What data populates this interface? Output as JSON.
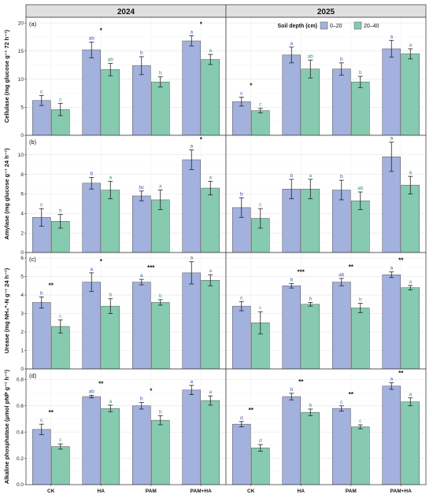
{
  "years": [
    "2024",
    "2025"
  ],
  "chart_data": {
    "type": "bar",
    "categories": [
      "CK",
      "HA",
      "PAM",
      "PAM+HA"
    ],
    "legend": {
      "title": "Soil depth (cm)",
      "placement": "top-right",
      "entries": [
        {
          "label": "0–20",
          "color": "#a2b1dd"
        },
        {
          "label": "20–40",
          "color": "#86cbb0"
        }
      ]
    },
    "series_colors": {
      "s0": "#a2b1dd",
      "s1": "#86cbb0"
    },
    "letter_colors": {
      "s0": "#3a5bb0",
      "s1": "#2e9a6e"
    },
    "grid": true,
    "panels": [
      {
        "tag": "(a)",
        "ylabel": "Cellulase (mg glucose g⁻¹ 72 h⁻¹)",
        "ylim": [
          0,
          21
        ],
        "yticks": [
          0,
          5,
          10,
          15,
          20
        ],
        "years": [
          {
            "s0": [
              6.2,
              15.2,
              12.4,
              16.8
            ],
            "s0_err": [
              0.9,
              1.4,
              1.6,
              0.9
            ],
            "s1": [
              4.6,
              11.7,
              9.5,
              13.5
            ],
            "s1_err": [
              1.1,
              1.1,
              0.9,
              0.9
            ],
            "s0_letters": [
              "c",
              "ab",
              "b",
              "a"
            ],
            "s1_letters": [
              "c",
              "ab",
              "b",
              "a"
            ],
            "sig": [
              "",
              "*",
              "",
              "*"
            ]
          },
          {
            "s0": [
              6.0,
              14.3,
              11.8,
              15.4
            ],
            "s0_err": [
              0.8,
              1.4,
              1.1,
              1.5
            ],
            "s1": [
              4.4,
              11.8,
              9.5,
              14.5
            ],
            "s1_err": [
              0.4,
              1.6,
              1.0,
              0.9
            ],
            "s0_letters": [
              "c",
              "a",
              "b",
              "a"
            ],
            "s1_letters": [
              "c",
              "ab",
              "b",
              "a"
            ],
            "sig": [
              "*",
              "",
              "",
              ""
            ]
          }
        ]
      },
      {
        "tag": "(b)",
        "ylabel": "Amylase (mg glucose g⁻¹ 24 h⁻¹)",
        "ylim": [
          0,
          12
        ],
        "yticks": [
          0,
          2,
          4,
          6,
          8,
          10
        ],
        "years": [
          {
            "s0": [
              3.6,
              7.1,
              5.8,
              9.5
            ],
            "s0_err": [
              0.9,
              0.6,
              0.5,
              1.0
            ],
            "s1": [
              3.2,
              6.4,
              5.4,
              6.6
            ],
            "s1_err": [
              0.7,
              0.9,
              1.0,
              0.7
            ],
            "s0_letters": [
              "c",
              "b",
              "bc",
              "a"
            ],
            "s1_letters": [
              "b",
              "a",
              "a",
              "a"
            ],
            "sig": [
              "",
              "",
              "",
              "*"
            ]
          },
          {
            "s0": [
              4.6,
              6.5,
              6.4,
              9.8
            ],
            "s0_err": [
              1.0,
              1.0,
              1.0,
              1.5
            ],
            "s1": [
              3.5,
              6.5,
              5.3,
              6.9
            ],
            "s1_err": [
              1.0,
              1.0,
              0.9,
              0.9
            ],
            "s0_letters": [
              "b",
              "b",
              "b",
              "a"
            ],
            "s1_letters": [
              "c",
              "a",
              "ab",
              "a"
            ],
            "sig": [
              "",
              "",
              "",
              ""
            ]
          }
        ]
      },
      {
        "tag": "(c)",
        "ylabel": "Urease (mg NH₄⁺-N g⁻¹ 24 h⁻¹)",
        "ylim": [
          0,
          6.3
        ],
        "yticks": [
          0,
          1,
          2,
          3,
          4,
          5,
          6
        ],
        "years": [
          {
            "s0": [
              3.6,
              4.7,
              4.7,
              5.2
            ],
            "s0_err": [
              0.3,
              0.5,
              0.15,
              0.6
            ],
            "s1": [
              2.3,
              3.4,
              3.6,
              4.8
            ],
            "s1_err": [
              0.35,
              0.4,
              0.15,
              0.3
            ],
            "s0_letters": [
              "b",
              "a",
              "a",
              "a"
            ],
            "s1_letters": [
              "c",
              "b",
              "b",
              "a"
            ],
            "sig": [
              "**",
              "*",
              "***",
              ""
            ]
          },
          {
            "s0": [
              3.4,
              4.5,
              4.7,
              5.1
            ],
            "s0_err": [
              0.25,
              0.12,
              0.2,
              0.15
            ],
            "s1": [
              2.5,
              3.5,
              3.3,
              4.4
            ],
            "s1_err": [
              0.6,
              0.1,
              0.25,
              0.12
            ],
            "s0_letters": [
              "c",
              "b",
              "ab",
              "a"
            ],
            "s1_letters": [
              "c",
              "b",
              "b",
              "a"
            ],
            "sig": [
              "",
              "***",
              "**",
              "**"
            ]
          }
        ]
      },
      {
        "tag": "(d)",
        "ylabel": "Alkaline phosphatase (μmol pNP g⁻¹ h⁻¹)",
        "ylim": [
          0,
          0.88
        ],
        "yticks": [
          0.0,
          0.2,
          0.4,
          0.6,
          0.8
        ],
        "years": [
          {
            "s0": [
              0.42,
              0.67,
              0.6,
              0.72
            ],
            "s0_err": [
              0.04,
              0.01,
              0.025,
              0.035
            ],
            "s1": [
              0.29,
              0.58,
              0.49,
              0.64
            ],
            "s1_err": [
              0.02,
              0.025,
              0.035,
              0.035
            ],
            "s0_letters": [
              "c",
              "ab",
              "b",
              "a"
            ],
            "s1_letters": [
              "c",
              "a",
              "b",
              "a"
            ],
            "sig": [
              "**",
              "**",
              "*",
              ""
            ]
          },
          {
            "s0": [
              0.46,
              0.67,
              0.58,
              0.75
            ],
            "s0_err": [
              0.02,
              0.025,
              0.02,
              0.025
            ],
            "s1": [
              0.28,
              0.55,
              0.44,
              0.63
            ],
            "s1_err": [
              0.025,
              0.025,
              0.015,
              0.03
            ],
            "s0_letters": [
              "d",
              "b",
              "c",
              "a"
            ],
            "s1_letters": [
              "d",
              "b",
              "c",
              "a"
            ],
            "sig": [
              "**",
              "**",
              "**",
              "**"
            ]
          }
        ]
      }
    ]
  }
}
